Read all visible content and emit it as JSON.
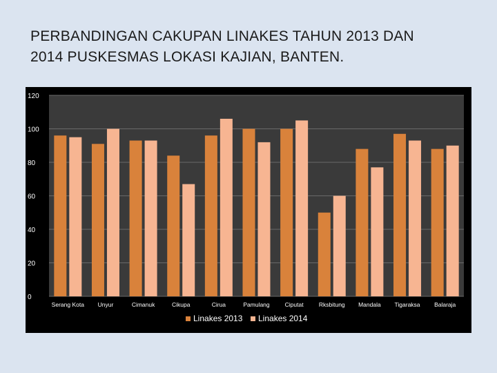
{
  "slide": {
    "title_line1": "PERBANDINGAN CAKUPAN LINAKES TAHUN 2013 DAN",
    "title_line2": "2014 PUSKESMAS LOKASI KAJIAN, BANTEN."
  },
  "colors": {
    "background": "#dbe4f0",
    "chart_bg": "#000000",
    "plot_bg": "#3a3a3a",
    "series_2013": "#d9823b",
    "series_2014": "#f7b592"
  },
  "chart_data": {
    "type": "bar",
    "title": "",
    "xlabel": "",
    "ylabel": "",
    "ylim": [
      0,
      120
    ],
    "yticks": [
      "0",
      "20",
      "40",
      "60",
      "80",
      "100",
      "120"
    ],
    "grid": true,
    "legend_position": "bottom",
    "categories": [
      "Serang Kota",
      "Unyur",
      "Cimanuk",
      "Cikupa",
      "Cirua",
      "Pamulang",
      "Ciputat",
      "Rksbitung",
      "Mandala",
      "Tigaraksa",
      "Balaraja"
    ],
    "series": [
      {
        "name": "Linakes 2013",
        "values": [
          96,
          91,
          93,
          84,
          96,
          100,
          100,
          50,
          88,
          97,
          88
        ]
      },
      {
        "name": "Linakes 2014",
        "values": [
          95,
          100,
          93,
          67,
          106,
          92,
          105,
          60,
          77,
          93,
          90
        ]
      }
    ]
  }
}
